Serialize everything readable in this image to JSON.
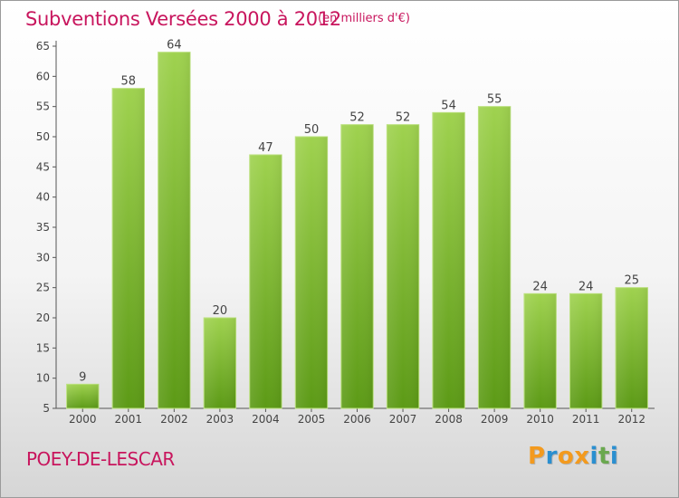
{
  "chart_data": {
    "type": "bar",
    "title": "Subventions Versées 2000 à 2012",
    "unit_note": "(en milliers d'€)",
    "categories": [
      "2000",
      "2001",
      "2002",
      "2003",
      "2004",
      "2005",
      "2006",
      "2007",
      "2008",
      "2009",
      "2010",
      "2011",
      "2012"
    ],
    "values": [
      9,
      58,
      64,
      20,
      47,
      50,
      52,
      52,
      54,
      55,
      24,
      24,
      25
    ],
    "ylim": [
      5,
      65
    ],
    "yticks": [
      5,
      10,
      15,
      20,
      25,
      30,
      35,
      40,
      45,
      50,
      55,
      60,
      65
    ],
    "grid": false,
    "data_labels": true,
    "bar_color": "#7fb534"
  },
  "footer": {
    "commune": "POEY-DE-LESCAR",
    "logo_letters": [
      "P",
      "r",
      "o",
      "x",
      "i",
      "t",
      "i"
    ],
    "logo_colors": [
      "#f39a1e",
      "#2a8fd0",
      "#f39a1e",
      "#f39a1e",
      "#2a8fd0",
      "#6aa84f",
      "#2a8fd0"
    ]
  },
  "colors": {
    "title": "#c8155d",
    "axis": "#555555"
  }
}
